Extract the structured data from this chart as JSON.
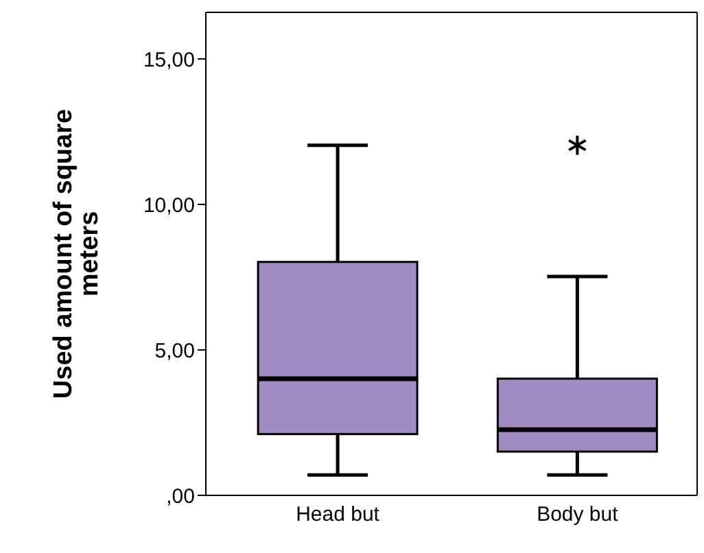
{
  "chart_data": {
    "type": "box",
    "ylabel": "Used amount of square meters",
    "categories": [
      "Head but",
      "Body but"
    ],
    "color": "#a08cc2",
    "boxes": [
      {
        "low": 0.7,
        "q1": 2.1,
        "median": 4.0,
        "q3": 8.0,
        "high": 12.0
      },
      {
        "low": 0.7,
        "q1": 1.5,
        "median": 2.25,
        "q3": 4.0,
        "high": 7.5,
        "outliers": [
          12.0
        ]
      }
    ],
    "ylim": [
      0,
      16.6
    ],
    "yticks": [
      {
        "value": 0,
        "label": ",00"
      },
      {
        "value": 5,
        "label": "5,00"
      },
      {
        "value": 10,
        "label": "10,00"
      },
      {
        "value": 15,
        "label": "15,00"
      }
    ],
    "grid": false,
    "marker": "star"
  }
}
